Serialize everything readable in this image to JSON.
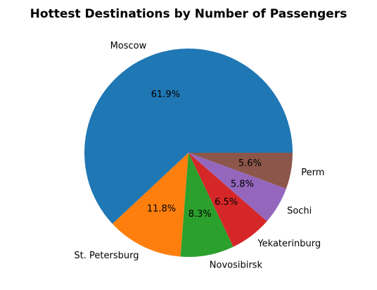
{
  "chart_data": {
    "type": "pie",
    "title": "Hottest Destinations by Number of Passengers",
    "categories": [
      "Moscow",
      "St. Petersburg",
      "Novosibirsk",
      "Yekaterinburg",
      "Sochi",
      "Perm"
    ],
    "values": [
      61.9,
      11.8,
      8.3,
      6.5,
      5.8,
      5.6
    ],
    "value_labels": [
      "61.9%",
      "11.8%",
      "8.3%",
      "6.5%",
      "5.8%",
      "5.6%"
    ],
    "colors": [
      "#1f77b4",
      "#ff7f0e",
      "#2ca02c",
      "#d62728",
      "#9467bd",
      "#8c564b"
    ],
    "start_angle_deg": 0,
    "direction": "counterclockwise",
    "legend": "none"
  }
}
